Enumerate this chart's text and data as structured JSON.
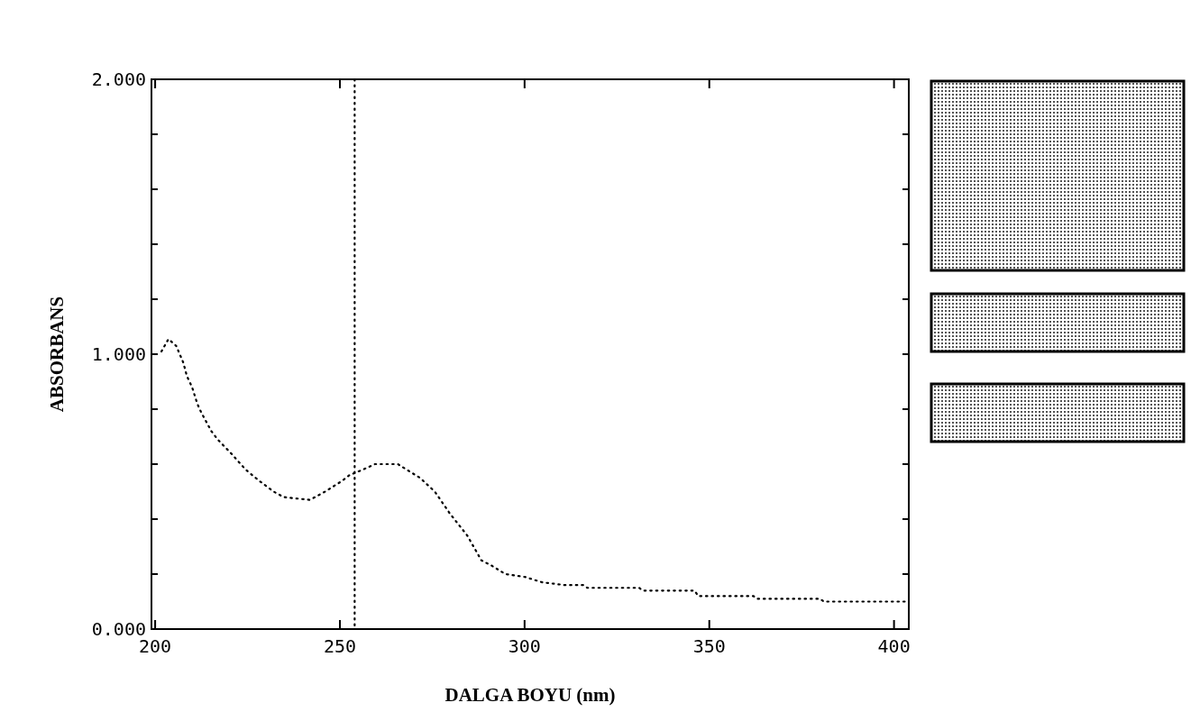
{
  "chart_data": {
    "type": "line",
    "xlabel": "DALGA BOYU (nm)",
    "ylabel": "ABSORBANS",
    "xlim": [
      199,
      404
    ],
    "ylim": [
      0,
      2
    ],
    "xticks": [
      200,
      250,
      300,
      350,
      400
    ],
    "yticks": [
      {
        "value": 0,
        "label": "0.000"
      },
      {
        "value": 0.2,
        "label": null
      },
      {
        "value": 0.4,
        "label": null
      },
      {
        "value": 0.6,
        "label": null
      },
      {
        "value": 0.8,
        "label": null
      },
      {
        "value": 1,
        "label": "1.000"
      },
      {
        "value": 1.2,
        "label": null
      },
      {
        "value": 1.4,
        "label": null
      },
      {
        "value": 1.6,
        "label": null
      },
      {
        "value": 1.8,
        "label": null
      },
      {
        "value": 2,
        "label": "2.000"
      }
    ],
    "grid": false,
    "line_style": "dotted",
    "marker": "none",
    "ref_lines": [
      {
        "axis": "x",
        "value": 254,
        "line_style": "dotted",
        "color": "#000000"
      }
    ],
    "series": [
      {
        "color": "#000000",
        "x": [
          201.7,
          203.6,
          205.7,
          207.6,
          208.6,
          210,
          211.4,
          212.4,
          215.2,
          216.9,
          220.5,
          224.5,
          228.1,
          232.1,
          234.8,
          241.9,
          246,
          250.7,
          252.6,
          256.2,
          259.5,
          265.7,
          268.1,
          271.7,
          275.7,
          279.8,
          284.5,
          288.3,
          291.2,
          294.8,
          300,
          304.8,
          311,
          316,
          317,
          331,
          332,
          346,
          347,
          362,
          363,
          380,
          381,
          404
        ],
        "values": [
          1.01,
          1.055,
          1.03,
          0.97,
          0.92,
          0.88,
          0.82,
          0.79,
          0.72,
          0.69,
          0.64,
          0.58,
          0.54,
          0.5,
          0.48,
          0.47,
          0.5,
          0.54,
          0.56,
          0.58,
          0.6,
          0.6,
          0.58,
          0.55,
          0.5,
          0.42,
          0.34,
          0.25,
          0.23,
          0.2,
          0.19,
          0.17,
          0.16,
          0.16,
          0.15,
          0.15,
          0.14,
          0.14,
          0.12,
          0.12,
          0.11,
          0.11,
          0.1,
          0.1
        ]
      }
    ]
  }
}
